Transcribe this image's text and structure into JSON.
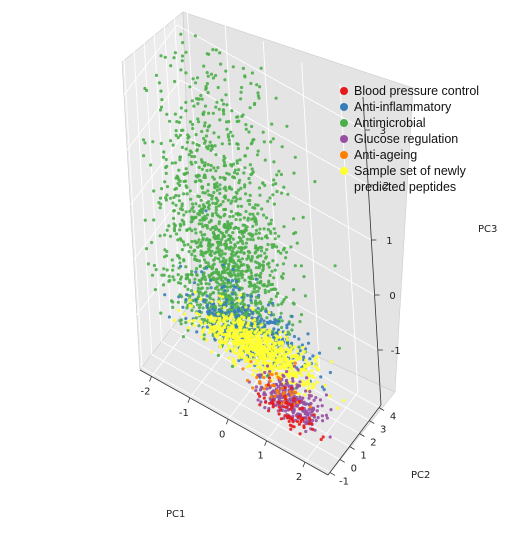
{
  "chart_data": {
    "type": "scatter",
    "projection": "3d",
    "xlabel": "PC1",
    "ylabel": "PC2",
    "zlabel": "PC3",
    "xlim": [
      -2.3,
      2.6
    ],
    "ylim": [
      -1.2,
      4.2
    ],
    "zlim": [
      -2.0,
      3.6
    ],
    "xticks": [
      "-2",
      "-1",
      "0",
      "1",
      "2"
    ],
    "yticks": [
      "-1",
      "0",
      "1",
      "2",
      "3",
      "4"
    ],
    "zticks": [
      "-1",
      "0",
      "1",
      "2",
      "3"
    ],
    "grid": true,
    "legend_position": "top-right",
    "series": [
      {
        "name": "Blood pressure control",
        "color": "#e41a1c",
        "cluster": {
          "center": [
            1.45,
            -0.6,
            -1.6
          ],
          "spread": [
            0.35,
            0.3,
            0.25
          ],
          "count": 70
        }
      },
      {
        "name": "Anti-inflammatory",
        "color": "#377eb8",
        "cluster": {
          "center": [
            0.2,
            0.6,
            -1.05
          ],
          "spread": [
            0.75,
            0.6,
            0.4
          ],
          "count": 420
        }
      },
      {
        "name": "Antimicrobial",
        "color": "#4daf4a",
        "cluster": {
          "center": [
            -0.6,
            1.5,
            -0.7
          ],
          "spread": [
            0.8,
            0.9,
            0.9
          ],
          "count": 1500
        }
      },
      {
        "name": "Glucose regulation",
        "color": "#984ea3",
        "cluster": {
          "center": [
            1.5,
            -0.45,
            -1.5
          ],
          "spread": [
            0.4,
            0.35,
            0.3
          ],
          "count": 260
        }
      },
      {
        "name": "Anti-ageing",
        "color": "#ff7f00",
        "cluster": {
          "center": [
            1.1,
            -0.2,
            -1.45
          ],
          "spread": [
            0.35,
            0.3,
            0.3
          ],
          "count": 40
        }
      },
      {
        "name": "Sample set of newly\npredicted peptides",
        "color": "#ffff33",
        "cluster": {
          "center": [
            0.3,
            0.8,
            -1.2
          ],
          "spread": [
            0.7,
            0.55,
            0.2
          ],
          "count": 800
        }
      }
    ]
  }
}
